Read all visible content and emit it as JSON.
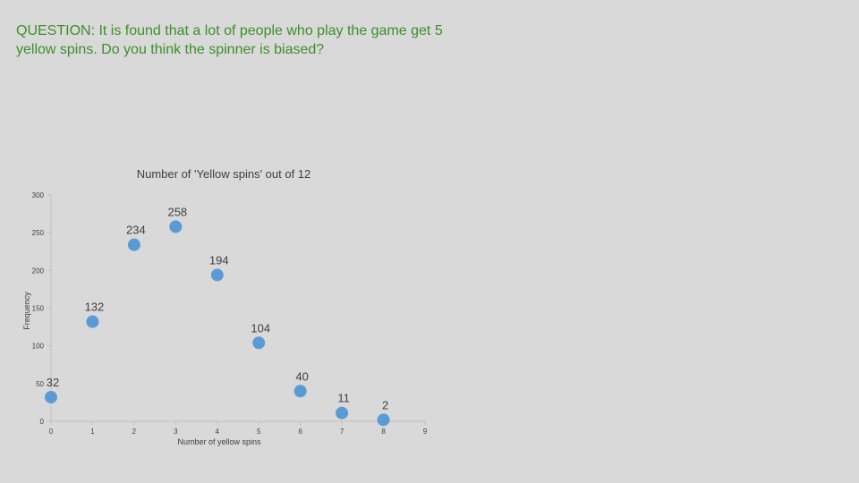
{
  "question": "QUESTION: It is found that a lot of people who play the game get 5 yellow spins. Do you think the spinner is biased?",
  "colors": {
    "background": "#d9d9d9",
    "question_text": "#3e8e2c",
    "point": "#5b9bd5",
    "axis": "#bfbfbf",
    "label": "#404040"
  },
  "chart_data": {
    "type": "scatter",
    "title": "Number of 'Yellow spins' out of 12",
    "xlabel": "Number of yellow spins",
    "ylabel": "Frequency",
    "xlim": [
      0,
      9
    ],
    "ylim": [
      0,
      300
    ],
    "xticks": [
      0,
      1,
      2,
      3,
      4,
      5,
      6,
      7,
      8,
      9
    ],
    "yticks": [
      0,
      50,
      100,
      150,
      200,
      250,
      300
    ],
    "grid": false,
    "legend": "none",
    "points": [
      {
        "x": 0,
        "y": 32
      },
      {
        "x": 1,
        "y": 132
      },
      {
        "x": 2,
        "y": 234
      },
      {
        "x": 3,
        "y": 258
      },
      {
        "x": 4,
        "y": 194
      },
      {
        "x": 5,
        "y": 104
      },
      {
        "x": 6,
        "y": 40
      },
      {
        "x": 7,
        "y": 11
      },
      {
        "x": 8,
        "y": 2
      }
    ],
    "data_labels": [
      "32",
      "132",
      "234",
      "258",
      "194",
      "104",
      "40",
      "11",
      "2"
    ]
  }
}
